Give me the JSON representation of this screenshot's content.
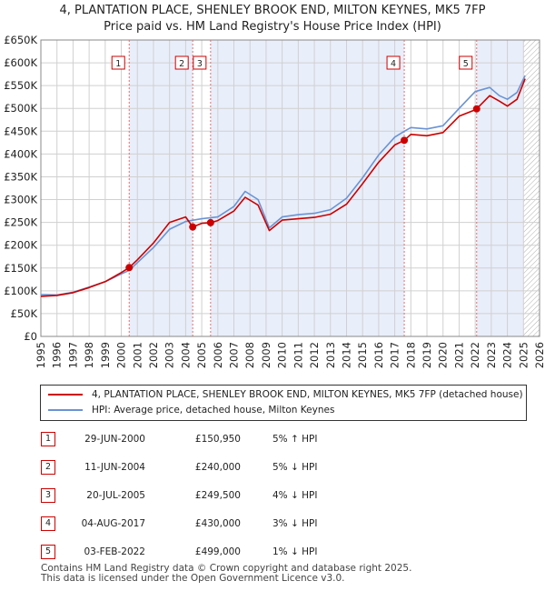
{
  "header": {
    "title_line1": "4, PLANTATION PLACE, SHENLEY BROOK END, MILTON KEYNES, MK5 7FP",
    "title_line2": "Price paid vs. HM Land Registry's House Price Index (HPI)"
  },
  "colors": {
    "property": "#cc0000",
    "hpi": "#6a93d4",
    "shade": "#e8eefa",
    "grid": "#d0d0d0"
  },
  "legend": {
    "property_label": "4, PLANTATION PLACE, SHENLEY BROOK END, MILTON KEYNES, MK5 7FP (detached house)",
    "hpi_label": "HPI: Average price, detached house, Milton Keynes"
  },
  "sales": [
    {
      "num": "1",
      "date": "29-JUN-2000",
      "price": "£150,950",
      "hpi": "5% ↑ HPI"
    },
    {
      "num": "2",
      "date": "11-JUN-2004",
      "price": "£240,000",
      "hpi": "5% ↓ HPI"
    },
    {
      "num": "3",
      "date": "20-JUL-2005",
      "price": "£249,500",
      "hpi": "4% ↓ HPI"
    },
    {
      "num": "4",
      "date": "04-AUG-2017",
      "price": "£430,000",
      "hpi": "3% ↓ HPI"
    },
    {
      "num": "5",
      "date": "03-FEB-2022",
      "price": "£499,000",
      "hpi": "1% ↓ HPI"
    }
  ],
  "footer": {
    "line1": "Contains HM Land Registry data © Crown copyright and database right 2025.",
    "line2": "This data is licensed under the Open Government Licence v3.0."
  },
  "chart_data": {
    "type": "line",
    "title": "Price paid vs. HM Land Registry's House Price Index (HPI)",
    "xlim": [
      1995,
      2026
    ],
    "ylim": [
      0,
      650000
    ],
    "x_ticks": [
      1995,
      1996,
      1997,
      1998,
      1999,
      2000,
      2001,
      2002,
      2003,
      2004,
      2005,
      2006,
      2007,
      2008,
      2009,
      2010,
      2011,
      2012,
      2013,
      2014,
      2015,
      2016,
      2017,
      2018,
      2019,
      2020,
      2021,
      2022,
      2023,
      2024,
      2025,
      2026
    ],
    "y_ticks": [
      0,
      50000,
      100000,
      150000,
      200000,
      250000,
      300000,
      350000,
      400000,
      450000,
      500000,
      550000,
      600000,
      650000
    ],
    "y_tick_labels": [
      "£0",
      "£50K",
      "£100K",
      "£150K",
      "£200K",
      "£250K",
      "£300K",
      "£350K",
      "£400K",
      "£450K",
      "£500K",
      "£550K",
      "£600K",
      "£650K"
    ],
    "shaded_ranges": [
      [
        2000.49,
        2004.44
      ],
      [
        2005.55,
        2017.59
      ],
      [
        2022.09,
        2025.0
      ]
    ],
    "hatched_from": 2025.0,
    "sale_markers": [
      {
        "label": "1",
        "x": 2000.49,
        "y": 150950
      },
      {
        "label": "2",
        "x": 2004.44,
        "y": 240000
      },
      {
        "label": "3",
        "x": 2005.55,
        "y": 249500
      },
      {
        "label": "4",
        "x": 2017.59,
        "y": 430000
      },
      {
        "label": "5",
        "x": 2022.09,
        "y": 499000
      }
    ],
    "series": [
      {
        "name": "HPI: Average price, detached house, Milton Keynes",
        "x": [
          1995,
          1996,
          1997,
          1998,
          1999,
          2000,
          2000.5,
          2001,
          2002,
          2003,
          2004,
          2004.5,
          2005,
          2006,
          2007,
          2007.7,
          2008.5,
          2009.2,
          2010,
          2011,
          2012,
          2013,
          2014,
          2015,
          2016,
          2017,
          2017.6,
          2018,
          2019,
          2020,
          2021,
          2022,
          2022.9,
          2023.5,
          2024,
          2024.6,
          2025.1
        ],
        "values": [
          92000,
          91000,
          97000,
          108000,
          120000,
          137000,
          145000,
          162000,
          195000,
          235000,
          252000,
          255000,
          258000,
          262000,
          285000,
          318000,
          300000,
          238000,
          262000,
          267000,
          270000,
          278000,
          303000,
          348000,
          398000,
          437000,
          450000,
          458000,
          455000,
          462000,
          500000,
          537000,
          546000,
          528000,
          520000,
          535000,
          572000
        ]
      },
      {
        "name": "4, PLANTATION PLACE, SHENLEY BROOK END, MILTON KEYNES, MK5 7FP (detached house)",
        "x": [
          1995,
          1996,
          1997,
          1998,
          1999,
          2000,
          2000.49,
          2001,
          2002,
          2003,
          2004,
          2004.44,
          2005,
          2005.55,
          2006,
          2007,
          2007.7,
          2008.5,
          2009.2,
          2010,
          2011,
          2012,
          2013,
          2014,
          2015,
          2016,
          2017,
          2017.59,
          2018,
          2019,
          2020,
          2021,
          2022,
          2022.09,
          2022.9,
          2023.5,
          2024,
          2024.6,
          2025.1
        ],
        "values": [
          88000,
          90000,
          96000,
          107000,
          120000,
          140000,
          150950,
          168000,
          205000,
          250000,
          262000,
          240000,
          248000,
          249500,
          254000,
          275000,
          305000,
          288000,
          232000,
          255000,
          258000,
          261000,
          268000,
          290000,
          335000,
          382000,
          420000,
          430000,
          443000,
          440000,
          447000,
          483000,
          497000,
          499000,
          528000,
          516000,
          505000,
          520000,
          565000
        ]
      }
    ]
  }
}
